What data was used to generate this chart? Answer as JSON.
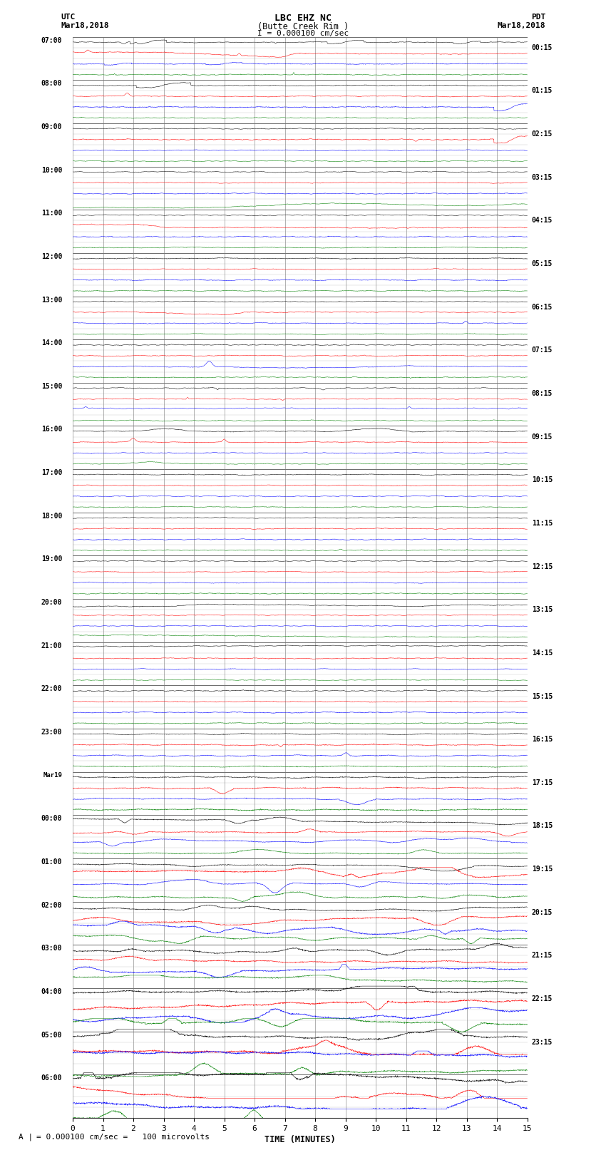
{
  "title_line1": "LBC EHZ NC",
  "title_line2": "(Butte Creek Rim )",
  "scale_label": "I = 0.000100 cm/sec",
  "left_timezone": "UTC",
  "left_date": "Mar18,2018",
  "right_timezone": "PDT",
  "right_date": "Mar18,2018",
  "xlabel": "TIME (MINUTES)",
  "bottom_note": "= 0.000100 cm/sec =   100 microvolts",
  "utc_labels": [
    "07:00",
    "08:00",
    "09:00",
    "10:00",
    "11:00",
    "12:00",
    "13:00",
    "14:00",
    "15:00",
    "16:00",
    "17:00",
    "18:00",
    "19:00",
    "20:00",
    "21:00",
    "22:00",
    "23:00",
    "Mar19",
    "00:00",
    "01:00",
    "02:00",
    "03:00",
    "04:00",
    "05:00",
    "06:00"
  ],
  "pdt_labels": [
    "00:15",
    "01:15",
    "02:15",
    "03:15",
    "04:15",
    "05:15",
    "06:15",
    "07:15",
    "08:15",
    "09:15",
    "10:15",
    "11:15",
    "12:15",
    "13:15",
    "14:15",
    "15:15",
    "16:15",
    "17:15",
    "18:15",
    "19:15",
    "20:15",
    "21:15",
    "22:15",
    "23:15"
  ],
  "num_rows": 25,
  "xmin": 0,
  "xmax": 15,
  "colors": [
    "black",
    "red",
    "blue",
    "green"
  ],
  "bg_color": "white",
  "grid_color": "#777777",
  "figwidth": 8.5,
  "figheight": 16.13
}
